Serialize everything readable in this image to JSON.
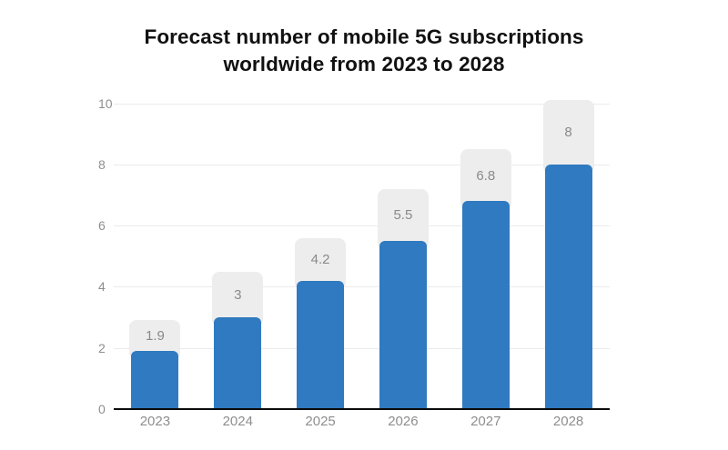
{
  "chart_data": {
    "type": "bar",
    "title": "Forecast number of mobile 5G subscriptions worldwide from 2023 to 2028",
    "title_lines": [
      "Forecast number of mobile 5G subscriptions",
      "worldwide from 2023 to 2028"
    ],
    "categories": [
      "2023",
      "2024",
      "2025",
      "2026",
      "2027",
      "2028"
    ],
    "values": [
      1.9,
      3,
      4.2,
      5.5,
      6.8,
      8
    ],
    "value_labels": [
      "1.9",
      "3",
      "4.2",
      "5.5",
      "6.8",
      "8"
    ],
    "label_box_tops": [
      2.9,
      4.5,
      5.6,
      7.2,
      8.5,
      10.1
    ],
    "xlabel": "",
    "ylabel": "",
    "ylim": [
      0,
      10
    ],
    "yticks": [
      0,
      2,
      4,
      6,
      8,
      10
    ],
    "grid": true,
    "legend_position": "none",
    "colors": {
      "bar": "#2f7ac0",
      "label_box": "#ededed",
      "label_text": "#8a8a8a",
      "axis_text": "#8e8e8e",
      "gridline": "#ebebeb",
      "axis_line": "#0b0b0b",
      "title": "#111111",
      "background": "#ffffff"
    }
  }
}
